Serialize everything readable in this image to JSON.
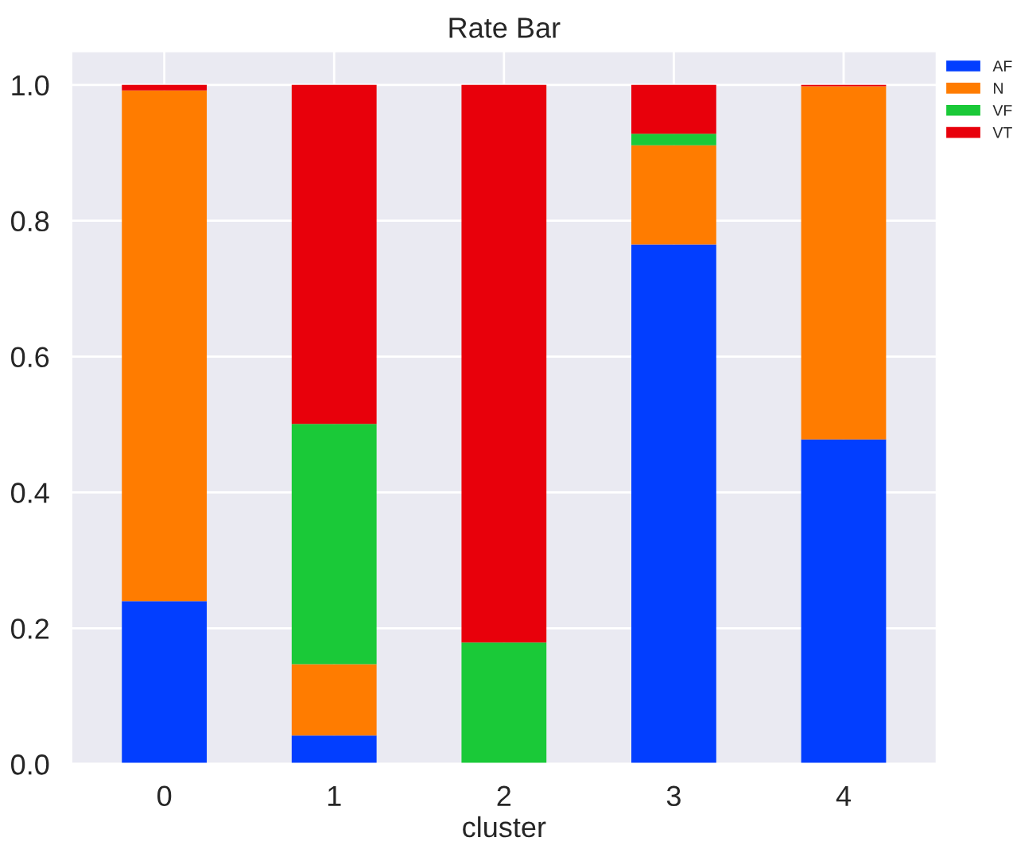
{
  "chart_data": {
    "type": "bar",
    "title": "Rate Bar",
    "xlabel": "cluster",
    "categories": [
      "0",
      "1",
      "2",
      "3",
      "4"
    ],
    "stacked": true,
    "series": [
      {
        "name": "AF",
        "color": "#023eff",
        "values": [
          0.24,
          0.042,
          0.0,
          0.765,
          0.478
        ]
      },
      {
        "name": "N",
        "color": "#ff7c00",
        "values": [
          0.752,
          0.105,
          0.0,
          0.146,
          0.52
        ]
      },
      {
        "name": "VF",
        "color": "#1ac938",
        "values": [
          0.0,
          0.354,
          0.179,
          0.017,
          0.0
        ]
      },
      {
        "name": "VT",
        "color": "#e8000b",
        "values": [
          0.008,
          0.499,
          0.821,
          0.072,
          0.002
        ]
      }
    ],
    "ylim": [
      0,
      1.05
    ],
    "yticks": [
      {
        "value": 0,
        "label": "0.0"
      },
      {
        "value": 0.2,
        "label": "0.2"
      },
      {
        "value": 0.4,
        "label": "0.4"
      },
      {
        "value": 0.6,
        "label": "0.6"
      },
      {
        "value": 0.8,
        "label": "0.8"
      },
      {
        "value": 1.0,
        "label": "1.0"
      }
    ],
    "grid": true,
    "legend": "top right"
  }
}
